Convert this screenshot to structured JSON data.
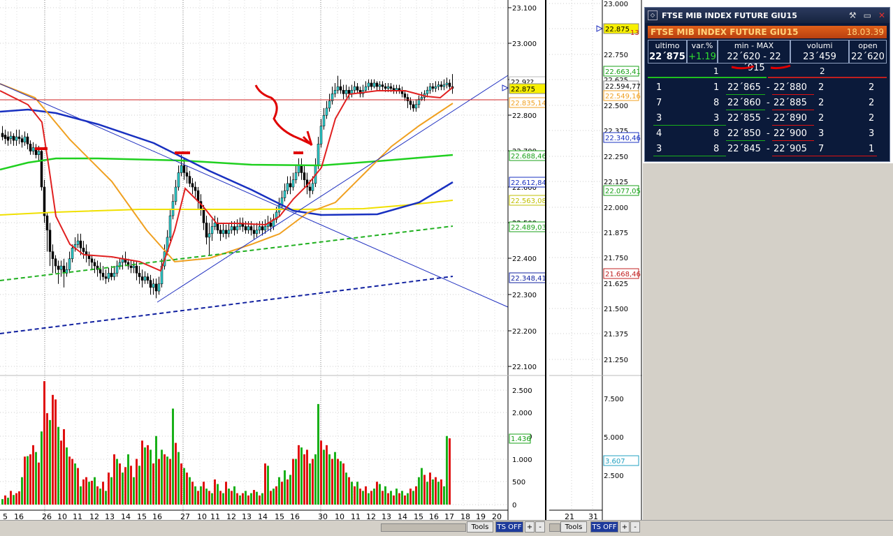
{
  "main_chart": {
    "price_ticks": [
      "23.100",
      "23.000",
      "22.900",
      "22.800",
      "22.700",
      "22.600",
      "22.500",
      "22.400",
      "22.300",
      "22.200",
      "22.100"
    ],
    "price_labels": {
      "last": "22.875",
      "ma_gray": "22.835,14",
      "ma_green": "22.688,46",
      "ma_blue": "22.612,84",
      "ma_yellow": "22.563,08",
      "green_dashed": "22.489,03",
      "blue_dashed": "22.348,41",
      "top_cut": "22.9??"
    },
    "volume_ticks": [
      "2.500",
      "2.000",
      "1.500",
      "1.000",
      "500",
      "0"
    ],
    "volume_labels": {
      "green_box": "1.436"
    },
    "x_labels": [
      "5",
      "16",
      "26",
      "10",
      "11",
      "12",
      "13",
      "14",
      "15",
      "16",
      "27",
      "10",
      "11",
      "12",
      "13",
      "14",
      "15",
      "16",
      "30",
      "10",
      "11",
      "12",
      "13",
      "14",
      "15",
      "16",
      "17",
      "18",
      "19",
      "20"
    ],
    "toolbar": {
      "tools": "Tools",
      "ts_off": "TS OFF",
      "plus": "+",
      "minus": "-"
    }
  },
  "side_chart": {
    "ticks": [
      "23.000",
      "22.875",
      "22.750",
      "22.625",
      "22.500",
      "22.375",
      "22.250",
      "22.125",
      "22.000",
      "21.875",
      "21.750",
      "21.625",
      "21.500",
      "21.375",
      "21.250"
    ],
    "labels": {
      "last": "22.875",
      "last_suffix": "13",
      "green": "22.663,41",
      "gray1": "22.594,77",
      "gray2": "22.549,16",
      "blue": "22.340,46",
      "green2": "22.077,05",
      "red": "21.668,46"
    },
    "volume_ticks": [
      "7.500",
      "5.000",
      "2.500"
    ],
    "volume_label": "3.607",
    "x_labels": [
      "21",
      "31"
    ],
    "toolbar": {
      "tools": "Tools",
      "ts_off": "TS OFF",
      "plus": "+",
      "minus": "-"
    }
  },
  "quote_panel": {
    "window_title": "FTSE MIB INDEX FUTURE GIU15",
    "instrument": "FTSE MIB INDEX FUTURE GIU15",
    "time": "18.03.39",
    "stats": [
      {
        "label": "ultimo",
        "value": "22´875"
      },
      {
        "label": "var.%",
        "value": "+1.19"
      },
      {
        "label": "min - MAX",
        "value": "22´620 - 22´915"
      },
      {
        "label": "volumi",
        "value": "23´459"
      },
      {
        "label": "open",
        "value": "22´620"
      }
    ],
    "book_header": {
      "bid": "1",
      "ask": "2"
    },
    "book": [
      {
        "n_bid": "1",
        "q_bid": "1",
        "bid": "22´865",
        "sep": "-",
        "ask": "22´880",
        "q_ask": "2",
        "n_ask": "2"
      },
      {
        "n_bid": "7",
        "q_bid": "8",
        "bid": "22´860",
        "sep": "-",
        "ask": "22´885",
        "q_ask": "2",
        "n_ask": "2"
      },
      {
        "n_bid": "3",
        "q_bid": "3",
        "bid": "22´855",
        "sep": "-",
        "ask": "22´890",
        "q_ask": "2",
        "n_ask": "2"
      },
      {
        "n_bid": "4",
        "q_bid": "8",
        "bid": "22´850",
        "sep": "-",
        "ask": "22´900",
        "q_ask": "3",
        "n_ask": "3"
      },
      {
        "n_bid": "3",
        "q_bid": "8",
        "bid": "22´845",
        "sep": "-",
        "ask": "22´905",
        "q_ask": "7",
        "n_ask": "1"
      }
    ]
  },
  "colors": {
    "bull": "#19b019",
    "bear": "#e01010",
    "ma_red": "#e02020",
    "ma_orange": "#f0a020",
    "ma_green": "#20d020",
    "ma_blue": "#1830c0",
    "ma_yellow": "#f0f000",
    "trendline": "#2030c0",
    "annotation": "#e00000"
  }
}
